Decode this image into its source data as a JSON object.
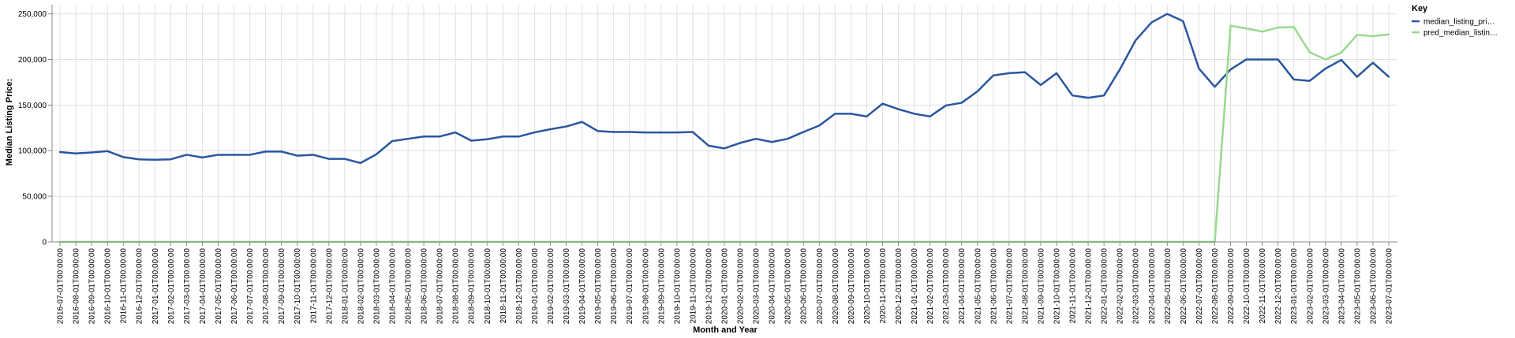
{
  "chart_data": {
    "type": "line",
    "title": "",
    "xlabel": "Month and Year",
    "ylabel": "Median Listing Price:",
    "ylim": [
      0,
      260000
    ],
    "yticks": [
      0,
      50000,
      100000,
      150000,
      200000,
      250000
    ],
    "ytick_labels": [
      "0",
      "50,000",
      "100,000",
      "150,000",
      "200,000",
      "250,000"
    ],
    "grid": true,
    "legend_title": "Key",
    "legend_position": "top-right",
    "categories": [
      "2016-07-01T00:00:00",
      "2016-08-01T00:00:00",
      "2016-09-01T00:00:00",
      "2016-10-01T00:00:00",
      "2016-11-01T00:00:00",
      "2016-12-01T00:00:00",
      "2017-01-01T00:00:00",
      "2017-02-01T00:00:00",
      "2017-03-01T00:00:00",
      "2017-04-01T00:00:00",
      "2017-05-01T00:00:00",
      "2017-06-01T00:00:00",
      "2017-07-01T00:00:00",
      "2017-08-01T00:00:00",
      "2017-09-01T00:00:00",
      "2017-10-01T00:00:00",
      "2017-11-01T00:00:00",
      "2017-12-01T00:00:00",
      "2018-01-01T00:00:00",
      "2018-02-01T00:00:00",
      "2018-03-01T00:00:00",
      "2018-04-01T00:00:00",
      "2018-05-01T00:00:00",
      "2018-06-01T00:00:00",
      "2018-07-01T00:00:00",
      "2018-08-01T00:00:00",
      "2018-09-01T00:00:00",
      "2018-10-01T00:00:00",
      "2018-11-01T00:00:00",
      "2018-12-01T00:00:00",
      "2019-01-01T00:00:00",
      "2019-02-01T00:00:00",
      "2019-03-01T00:00:00",
      "2019-04-01T00:00:00",
      "2019-05-01T00:00:00",
      "2019-06-01T00:00:00",
      "2019-07-01T00:00:00",
      "2019-08-01T00:00:00",
      "2019-09-01T00:00:00",
      "2019-10-01T00:00:00",
      "2019-11-01T00:00:00",
      "2019-12-01T00:00:00",
      "2020-01-01T00:00:00",
      "2020-02-01T00:00:00",
      "2020-03-01T00:00:00",
      "2020-04-01T00:00:00",
      "2020-05-01T00:00:00",
      "2020-06-01T00:00:00",
      "2020-07-01T00:00:00",
      "2020-08-01T00:00:00",
      "2020-09-01T00:00:00",
      "2020-10-01T00:00:00",
      "2020-11-01T00:00:00",
      "2020-12-01T00:00:00",
      "2021-01-01T00:00:00",
      "2021-02-01T00:00:00",
      "2021-03-01T00:00:00",
      "2021-04-01T00:00:00",
      "2021-05-01T00:00:00",
      "2021-06-01T00:00:00",
      "2021-07-01T00:00:00",
      "2021-08-01T00:00:00",
      "2021-09-01T00:00:00",
      "2021-10-01T00:00:00",
      "2021-11-01T00:00:00",
      "2021-12-01T00:00:00",
      "2022-01-01T00:00:00",
      "2022-02-01T00:00:00",
      "2022-03-01T00:00:00",
      "2022-04-01T00:00:00",
      "2022-05-01T00:00:00",
      "2022-06-01T00:00:00",
      "2022-07-01T00:00:00",
      "2022-08-01T00:00:00",
      "2022-09-01T00:00:00",
      "2022-10-01T00:00:00",
      "2022-11-01T00:00:00",
      "2022-12-01T00:00:00",
      "2023-01-01T00:00:00",
      "2023-02-01T00:00:00",
      "2023-03-01T00:00:00",
      "2023-04-01T00:00:00",
      "2023-05-01T00:00:00",
      "2023-06-01T00:00:00",
      "2023-07-01T00:00:00"
    ],
    "series": [
      {
        "name": "median_listing_pri…",
        "color": "#2a56a0",
        "values": [
          98500,
          97000,
          98000,
          99500,
          93000,
          90500,
          90000,
          90500,
          95500,
          92500,
          95500,
          95500,
          95500,
          99000,
          99000,
          94500,
          95500,
          91000,
          91000,
          86500,
          96000,
          110500,
          113000,
          115500,
          115500,
          120000,
          111000,
          112500,
          115500,
          115500,
          120000,
          123500,
          126500,
          131500,
          121500,
          120500,
          120500,
          120000,
          120000,
          120000,
          120500,
          105500,
          102500,
          108500,
          113000,
          109500,
          113000,
          120500,
          127500,
          140500,
          140500,
          137500,
          151500,
          145500,
          140500,
          137500,
          149500,
          152500,
          165000,
          182500,
          185000,
          186000,
          172000,
          185000,
          160500,
          158000,
          160500,
          189000,
          221000,
          240500,
          250000,
          242000,
          190000,
          170000,
          189000,
          200000,
          200000,
          200000,
          178000,
          176500,
          190000,
          199500,
          181000,
          196500,
          181000
        ]
      },
      {
        "name": "pred_median_listin…",
        "color": "#98d98e",
        "values": [
          0,
          0,
          0,
          0,
          0,
          0,
          0,
          0,
          0,
          0,
          0,
          0,
          0,
          0,
          0,
          0,
          0,
          0,
          0,
          0,
          0,
          0,
          0,
          0,
          0,
          0,
          0,
          0,
          0,
          0,
          0,
          0,
          0,
          0,
          0,
          0,
          0,
          0,
          0,
          0,
          0,
          0,
          0,
          0,
          0,
          0,
          0,
          0,
          0,
          0,
          0,
          0,
          0,
          0,
          0,
          0,
          0,
          0,
          0,
          0,
          0,
          0,
          0,
          0,
          0,
          0,
          0,
          0,
          0,
          0,
          0,
          0,
          0,
          0,
          237000,
          234000,
          230500,
          235000,
          235500,
          208000,
          200000,
          207500,
          227000,
          225500,
          227500
        ]
      }
    ]
  }
}
